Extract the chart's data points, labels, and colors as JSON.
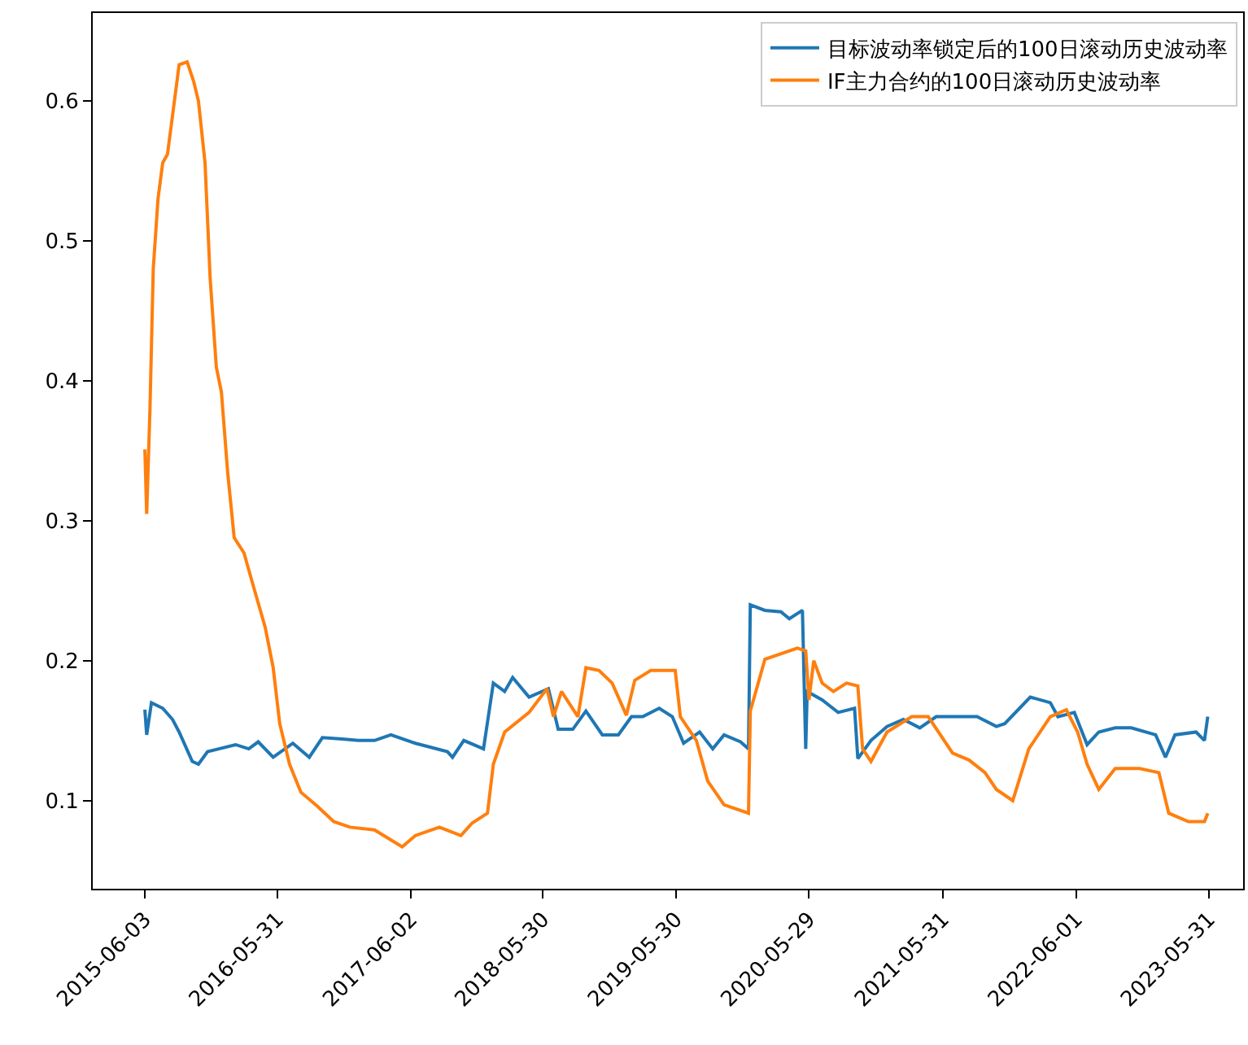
{
  "chart_data": {
    "type": "line",
    "xlim": [
      "2015-01-11",
      "2023-09-02"
    ],
    "xticks": [
      "2015-06-03",
      "2016-05-31",
      "2017-06-02",
      "2018-05-30",
      "2019-05-30",
      "2020-05-29",
      "2021-05-31",
      "2022-06-01",
      "2023-05-31"
    ],
    "ylim": [
      0.037,
      0.663
    ],
    "yticks": [
      0.1,
      0.2,
      0.3,
      0.4,
      0.5,
      0.6
    ],
    "grid": false,
    "legend": "top right",
    "series": [
      {
        "name": "目标波动率锁定后的100日滚动历史波动率",
        "color": "#1f77b4",
        "x": [
          "2015-06-03",
          "2015-06-08",
          "2015-06-21",
          "2015-07-22",
          "2015-08-18",
          "2015-09-05",
          "2015-10-11",
          "2015-10-28",
          "2015-11-22",
          "2015-12-23",
          "2016-02-07",
          "2016-03-14",
          "2016-04-09",
          "2016-05-20",
          "2016-07-13",
          "2016-08-27",
          "2016-10-02",
          "2016-11-25",
          "2017-01-08",
          "2017-02-22",
          "2017-04-08",
          "2017-06-14",
          "2017-09-10",
          "2017-09-24",
          "2017-10-25",
          "2017-12-18",
          "2018-01-14",
          "2018-02-14",
          "2018-03-08",
          "2018-04-22",
          "2018-06-14",
          "2018-07-11",
          "2018-08-20",
          "2018-09-25",
          "2018-11-09",
          "2018-12-23",
          "2019-01-28",
          "2019-02-28",
          "2019-04-14",
          "2019-05-20",
          "2019-06-20",
          "2019-08-03",
          "2019-09-08",
          "2019-10-09",
          "2019-11-23",
          "2019-12-15",
          "2019-12-20",
          "2020-01-29",
          "2020-03-13",
          "2020-04-05",
          "2020-05-11",
          "2020-05-20",
          "2020-05-24",
          "2020-07-04",
          "2020-08-17",
          "2020-10-01",
          "2020-10-10",
          "2020-11-15",
          "2020-12-29",
          "2021-02-12",
          "2021-03-29",
          "2021-05-13",
          "2021-07-19",
          "2021-09-02",
          "2021-10-25",
          "2021-11-17",
          "2022-01-26",
          "2022-03-22",
          "2022-04-12",
          "2022-05-27",
          "2022-07-01",
          "2022-08-02",
          "2022-09-16",
          "2022-10-30",
          "2023-01-05",
          "2023-02-01",
          "2023-02-27",
          "2023-04-26",
          "2023-05-19",
          "2023-05-28"
        ],
        "values": [
          0.165,
          0.147,
          0.17,
          0.166,
          0.158,
          0.149,
          0.128,
          0.126,
          0.135,
          0.137,
          0.14,
          0.137,
          0.142,
          0.131,
          0.141,
          0.131,
          0.145,
          0.144,
          0.143,
          0.143,
          0.147,
          0.141,
          0.135,
          0.131,
          0.143,
          0.137,
          0.184,
          0.178,
          0.188,
          0.174,
          0.18,
          0.151,
          0.151,
          0.164,
          0.147,
          0.147,
          0.16,
          0.16,
          0.166,
          0.16,
          0.141,
          0.149,
          0.137,
          0.147,
          0.142,
          0.137,
          0.24,
          0.236,
          0.235,
          0.23,
          0.236,
          0.137,
          0.178,
          0.172,
          0.163,
          0.166,
          0.13,
          0.143,
          0.153,
          0.158,
          0.152,
          0.16,
          0.16,
          0.16,
          0.153,
          0.155,
          0.174,
          0.17,
          0.16,
          0.163,
          0.14,
          0.149,
          0.152,
          0.152,
          0.147,
          0.131,
          0.147,
          0.149,
          0.143,
          0.16
        ]
      },
      {
        "name": "IF主力合约的100日滚动历史波动率",
        "color": "#ff7f0e",
        "x": [
          "2015-06-03",
          "2015-06-08",
          "2015-06-17",
          "2015-06-26",
          "2015-07-09",
          "2015-07-22",
          "2015-08-04",
          "2015-08-18",
          "2015-09-05",
          "2015-09-27",
          "2015-10-15",
          "2015-10-28",
          "2015-11-15",
          "2015-11-29",
          "2015-12-16",
          "2015-12-30",
          "2016-01-16",
          "2016-02-03",
          "2016-03-01",
          "2016-03-27",
          "2016-04-28",
          "2016-05-20",
          "2016-06-07",
          "2016-07-04",
          "2016-08-04",
          "2016-09-18",
          "2016-11-02",
          "2016-12-17",
          "2017-02-22",
          "2017-05-09",
          "2017-06-14",
          "2017-08-19",
          "2017-10-17",
          "2017-11-17",
          "2017-12-29",
          "2018-01-14",
          "2018-02-14",
          "2018-04-22",
          "2018-06-10",
          "2018-06-28",
          "2018-07-20",
          "2018-09-03",
          "2018-09-25",
          "2018-10-31",
          "2018-12-06",
          "2019-01-14",
          "2019-02-06",
          "2019-03-22",
          "2019-05-28",
          "2019-06-11",
          "2019-07-25",
          "2019-08-25",
          "2019-10-09",
          "2019-12-15",
          "2019-12-20",
          "2020-01-29",
          "2020-04-27",
          "2020-05-20",
          "2020-05-29",
          "2020-06-11",
          "2020-07-04",
          "2020-08-04",
          "2020-09-09",
          "2020-10-10",
          "2020-10-23",
          "2020-11-15",
          "2020-12-29",
          "2021-03-07",
          "2021-04-21",
          "2021-06-27",
          "2021-08-11",
          "2021-09-24",
          "2021-10-25",
          "2021-12-09",
          "2022-01-22",
          "2022-03-22",
          "2022-05-05",
          "2022-06-05",
          "2022-07-01",
          "2022-08-02",
          "2022-09-16",
          "2022-11-22",
          "2023-01-14",
          "2023-02-10",
          "2023-04-05",
          "2023-05-19",
          "2023-05-28"
        ],
        "values": [
          0.351,
          0.305,
          0.38,
          0.48,
          0.53,
          0.556,
          0.562,
          0.59,
          0.626,
          0.628,
          0.614,
          0.6,
          0.556,
          0.474,
          0.41,
          0.392,
          0.335,
          0.288,
          0.277,
          0.253,
          0.224,
          0.195,
          0.155,
          0.126,
          0.106,
          0.096,
          0.085,
          0.081,
          0.079,
          0.067,
          0.075,
          0.081,
          0.075,
          0.084,
          0.091,
          0.126,
          0.149,
          0.163,
          0.18,
          0.16,
          0.178,
          0.16,
          0.195,
          0.193,
          0.184,
          0.161,
          0.186,
          0.193,
          0.193,
          0.16,
          0.143,
          0.114,
          0.097,
          0.091,
          0.164,
          0.201,
          0.209,
          0.207,
          0.172,
          0.2,
          0.184,
          0.178,
          0.184,
          0.182,
          0.137,
          0.128,
          0.149,
          0.16,
          0.16,
          0.134,
          0.129,
          0.12,
          0.108,
          0.1,
          0.137,
          0.16,
          0.165,
          0.149,
          0.126,
          0.108,
          0.123,
          0.123,
          0.12,
          0.091,
          0.085,
          0.085,
          0.091
        ]
      }
    ]
  }
}
